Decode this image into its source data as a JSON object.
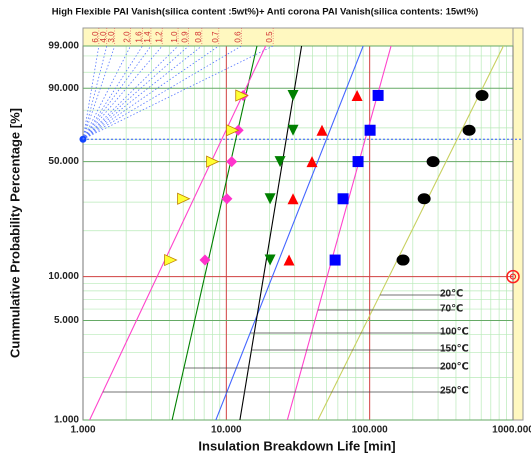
{
  "chart_data": {
    "type": "weibull",
    "title": "High Flexible PAI Vanish(silica content :5wt%)+ Anti corona PAI Vanish(silica contents: 15wt%)",
    "x_label": "Insulation Breakdown Life [min]",
    "y_label": "Cummulative Probability Percentage [%]",
    "log_x": true,
    "xlim": [
      1,
      1000
    ],
    "xticks": [
      {
        "value": 1,
        "label": "1.000"
      },
      {
        "value": 10,
        "label": "10.000"
      },
      {
        "value": 100,
        "label": "100.000"
      },
      {
        "value": 1000,
        "label": "1000.000"
      }
    ],
    "xminor": [
      2,
      3,
      4,
      5,
      6,
      7,
      8,
      9,
      20,
      30,
      40,
      50,
      60,
      70,
      80,
      90,
      200,
      300,
      400,
      500,
      600,
      700,
      800,
      900
    ],
    "ylim": [
      1,
      99
    ],
    "yticks": [
      {
        "value": 1,
        "label": "1.000"
      },
      {
        "value": 5,
        "label": "5.000"
      },
      {
        "value": 10,
        "label": "10.000"
      },
      {
        "value": 50,
        "label": "50.000"
      },
      {
        "value": 90,
        "label": "90.000"
      },
      {
        "value": 99,
        "label": "99.000"
      }
    ],
    "yminor": [
      2,
      3,
      4,
      6,
      7,
      8,
      9,
      20,
      30,
      40,
      60,
      63.2,
      70,
      80,
      95,
      98
    ],
    "grid": true,
    "shape_ticks": [
      {
        "value": 6,
        "label": "6.0"
      },
      {
        "value": 4,
        "label": "4.0"
      },
      {
        "value": 3,
        "label": "3.0"
      },
      {
        "value": 2,
        "label": "2.0"
      },
      1.6,
      1.4,
      1.2,
      {
        "value": 1,
        "label": "1.0"
      },
      0.9,
      0.8,
      0.7,
      0.6,
      0.5
    ],
    "series": [
      {
        "name": "20℃",
        "color": "#000000",
        "line_color": "#c8d060",
        "marker": "circle",
        "x": [
          171,
          240,
          277,
          494,
          608
        ],
        "values": [
          12.9,
          31.4,
          50,
          68.6,
          87.1
        ]
      },
      {
        "name": "70℃",
        "color": "#0000ff",
        "line_color": "#ff44cc",
        "marker": "square",
        "x": [
          57.4,
          65.2,
          83,
          100.7,
          114.5
        ],
        "values": [
          12.9,
          31.4,
          50,
          68.6,
          87.1
        ]
      },
      {
        "name": "100℃",
        "color": "#ff0000",
        "line_color": "#4466ff",
        "marker": "triangle-up",
        "x": [
          27.4,
          29.2,
          39.6,
          46.5,
          81.7
        ],
        "values": [
          12.9,
          31.4,
          50,
          68.6,
          87.1
        ]
      },
      {
        "name": "150℃",
        "color": "#008000",
        "line_color": "#000000",
        "marker": "triangle-down",
        "x": [
          20.2,
          20.2,
          23.7,
          29.2,
          29.2
        ],
        "values": [
          12.9,
          31.4,
          50,
          68.6,
          87.1
        ]
      },
      {
        "name": "200℃",
        "color": "#ff33cc",
        "line_color": "#008000",
        "marker": "diamond",
        "x": [
          7.1,
          10.1,
          10.9,
          12.1,
          13.1
        ],
        "values": [
          12.9,
          31.4,
          50,
          68.6,
          87.1
        ]
      },
      {
        "name": "250℃",
        "color": "#ffff33",
        "line_color": "#ff44cc",
        "marker": "triangle-right",
        "x": [
          4.05,
          4.99,
          7.95,
          10.96,
          12.7
        ],
        "values": [
          12.9,
          31.4,
          50,
          68.6,
          87.1
        ]
      }
    ]
  }
}
